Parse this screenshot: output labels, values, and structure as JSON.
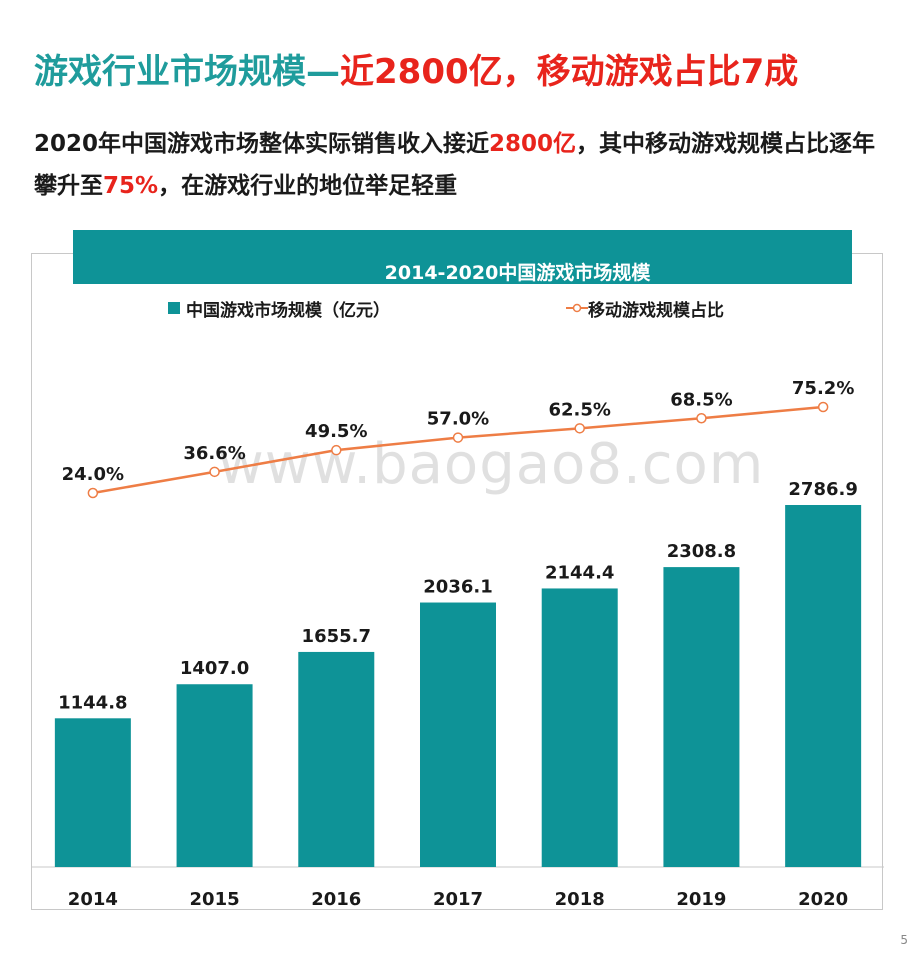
{
  "slide": {
    "title_part1": "游戏行业市场规模—",
    "title_part2": "近2800亿，移动游戏占比7成",
    "subtitle_part1": "2020年中国游戏市场整体实际销售收入接近",
    "subtitle_hl1": "2800亿",
    "subtitle_part2": "，其中移动游戏规模占比逐年攀升至",
    "subtitle_hl2": "75%",
    "subtitle_part3": "，在游戏行业的地位举足轻重",
    "page_number": "5",
    "watermark": "www.baogao8.com"
  },
  "colors": {
    "bar": "#0e9397",
    "line": "#ee7d45",
    "title": "#1f9c9c",
    "highlight": "#e8241c"
  },
  "chart_data": {
    "type": "bar",
    "title": "2014-2020中国游戏市场规模",
    "categories": [
      "2014",
      "2015",
      "2016",
      "2017",
      "2018",
      "2019",
      "2020"
    ],
    "series": [
      {
        "name": "中国游戏市场规模（亿元）",
        "type": "bar",
        "values": [
          1144.8,
          1407.0,
          1655.7,
          2036.1,
          2144.4,
          2308.8,
          2786.9
        ],
        "labels": [
          "1144.8",
          "1407.0",
          "1655.7",
          "2036.1",
          "2144.4",
          "2308.8",
          "2786.9"
        ]
      },
      {
        "name": "移动游戏规模占比",
        "type": "line",
        "values": [
          24.0,
          36.6,
          49.5,
          57.0,
          62.5,
          68.5,
          75.2
        ],
        "labels": [
          "24.0%",
          "36.6%",
          "49.5%",
          "57.0%",
          "62.5%",
          "68.5%",
          "75.2%"
        ]
      }
    ],
    "legend_position": "top",
    "grid": false
  }
}
